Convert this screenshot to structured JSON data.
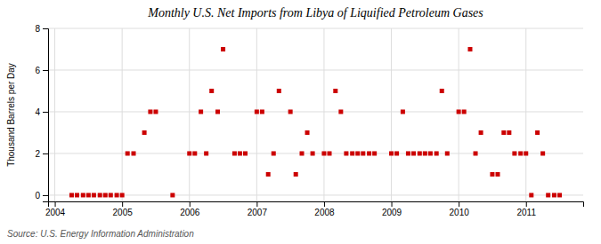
{
  "chart_data": {
    "type": "scatter",
    "title": "Monthly U.S. Net Imports from Libya of Liquified Petroleum Gases",
    "ylabel": "Thousand Barrels per Day",
    "source": "Source: U.S. Energy Information Administration",
    "x": [
      2004.25,
      2004.33,
      2004.42,
      2004.5,
      2004.58,
      2004.67,
      2004.75,
      2004.83,
      2004.92,
      2005.0,
      2005.08,
      2005.17,
      2005.33,
      2005.42,
      2005.5,
      2005.75,
      2006.0,
      2006.08,
      2006.17,
      2006.25,
      2006.33,
      2006.42,
      2006.5,
      2006.67,
      2006.75,
      2006.83,
      2007.0,
      2007.08,
      2007.17,
      2007.25,
      2007.33,
      2007.5,
      2007.58,
      2007.67,
      2007.75,
      2007.83,
      2008.0,
      2008.08,
      2008.17,
      2008.25,
      2008.33,
      2008.42,
      2008.5,
      2008.58,
      2008.67,
      2008.75,
      2009.0,
      2009.08,
      2009.17,
      2009.25,
      2009.33,
      2009.42,
      2009.5,
      2009.58,
      2009.67,
      2009.75,
      2009.83,
      2010.0,
      2010.08,
      2010.17,
      2010.25,
      2010.33,
      2010.5,
      2010.58,
      2010.67,
      2010.75,
      2010.83,
      2010.92,
      2011.0,
      2011.08,
      2011.17,
      2011.25,
      2011.33,
      2011.42,
      2011.5
    ],
    "values": [
      0,
      0,
      0,
      0,
      0,
      0,
      0,
      0,
      0,
      0,
      2,
      2,
      3,
      4,
      4,
      0,
      2,
      2,
      4,
      2,
      5,
      4,
      7,
      2,
      2,
      2,
      4,
      4,
      1,
      2,
      5,
      4,
      1,
      2,
      3,
      2,
      2,
      2,
      5,
      4,
      2,
      2,
      2,
      2,
      2,
      2,
      2,
      2,
      4,
      2,
      2,
      2,
      2,
      2,
      2,
      5,
      2,
      4,
      4,
      7,
      2,
      3,
      1,
      1,
      3,
      3,
      2,
      2,
      2,
      0,
      3,
      2,
      0,
      0,
      0
    ],
    "color": "#cc0000",
    "marker": "square",
    "xlim": [
      2003.9,
      2011.85
    ],
    "ylim": [
      -0.3,
      8
    ],
    "xticks": [
      2004,
      2005,
      2006,
      2007,
      2008,
      2009,
      2010,
      2011
    ],
    "yticks": [
      0,
      2,
      4,
      6,
      8
    ],
    "grid": true
  }
}
